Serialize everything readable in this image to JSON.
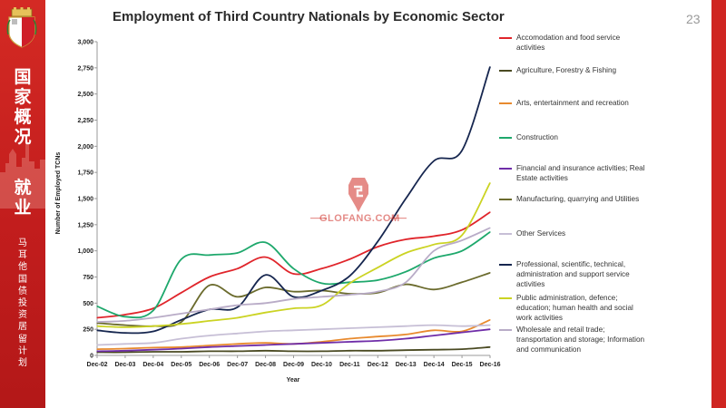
{
  "title": "Employment of Third Country Nationals by Economic Sector",
  "page_number": "23",
  "sidebar": {
    "title1": "国家概况",
    "title2": "就业",
    "subtitle": "马耳他国债投资居留计划"
  },
  "watermark": "GLOFANG.COM",
  "colors": {
    "sidebar": "#cc2320",
    "accent": "#cf2521"
  },
  "chart_data": {
    "type": "line",
    "title": "Employment of Third Country Nationals by Economic Sector",
    "xlabel": "Year",
    "ylabel": "Number of Employed TCNs",
    "ylim": [
      0,
      3000
    ],
    "yticks": [
      "0",
      "250",
      "500",
      "750",
      "1,000",
      "1,250",
      "1,500",
      "1,750",
      "2,000",
      "2,250",
      "2,500",
      "2,750",
      "3,000"
    ],
    "categories": [
      "Dec-02",
      "Dec-03",
      "Dec-04",
      "Dec-05",
      "Dec-06",
      "Dec-07",
      "Dec-08",
      "Dec-09",
      "Dec-10",
      "Dec-11",
      "Dec-12",
      "Dec-13",
      "Dec-14",
      "Dec-15",
      "Dec-16"
    ],
    "legend_position": "right",
    "grid": false,
    "series": [
      {
        "name": "Accomodation and food service activities",
        "color": "#e0252b",
        "values": [
          360,
          390,
          450,
          600,
          750,
          830,
          940,
          780,
          830,
          920,
          1040,
          1110,
          1140,
          1200,
          1370
        ]
      },
      {
        "name": "Agriculture, Forestry & Fishing",
        "color": "#4a4a22",
        "values": [
          30,
          30,
          35,
          35,
          40,
          40,
          45,
          40,
          40,
          45,
          45,
          50,
          55,
          60,
          80
        ]
      },
      {
        "name": "Arts, entertainment and recreation",
        "color": "#e88a2e",
        "values": [
          60,
          65,
          75,
          80,
          95,
          110,
          120,
          110,
          130,
          160,
          180,
          200,
          240,
          230,
          340
        ]
      },
      {
        "name": "Construction",
        "color": "#1ea86c",
        "values": [
          470,
          370,
          430,
          920,
          960,
          980,
          1080,
          830,
          690,
          700,
          720,
          800,
          930,
          1000,
          1180
        ]
      },
      {
        "name": "Financial and insurance activities; Real Estate activities",
        "color": "#6f2da8",
        "values": [
          40,
          45,
          55,
          65,
          80,
          90,
          100,
          110,
          120,
          130,
          140,
          160,
          190,
          220,
          250
        ]
      },
      {
        "name": "Manufacturing, quarrying and Utilities",
        "color": "#6b6b2d",
        "values": [
          310,
          290,
          280,
          320,
          670,
          560,
          650,
          610,
          620,
          590,
          600,
          680,
          630,
          700,
          790
        ]
      },
      {
        "name": "Other Services",
        "color": "#c7bfd6",
        "values": [
          100,
          110,
          120,
          160,
          190,
          210,
          230,
          240,
          250,
          260,
          270,
          280,
          290,
          280,
          290
        ]
      },
      {
        "name": "Professional, scientific, technical, administration and support service activities",
        "color": "#16264f",
        "values": [
          240,
          215,
          230,
          340,
          440,
          460,
          770,
          560,
          620,
          760,
          1090,
          1500,
          1860,
          1960,
          2760
        ]
      },
      {
        "name": "Public administration, defence; education; human health and social work activities",
        "color": "#cbd323",
        "values": [
          280,
          270,
          280,
          300,
          330,
          360,
          410,
          450,
          480,
          690,
          840,
          980,
          1060,
          1150,
          1650
        ]
      },
      {
        "name": "Wholesale and retail trade; transportation and storage; Information and communication",
        "color": "#b9acc7",
        "values": [
          320,
          330,
          360,
          400,
          440,
          480,
          500,
          540,
          560,
          580,
          610,
          700,
          1000,
          1100,
          1220
        ]
      }
    ]
  }
}
